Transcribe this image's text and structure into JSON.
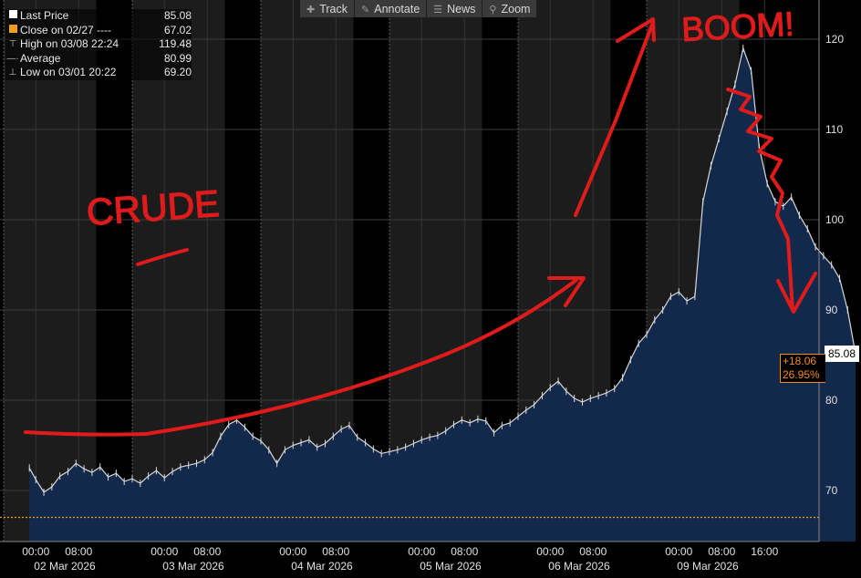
{
  "legend": {
    "last_price_label": "Last Price",
    "last_price_value": "85.08",
    "close_label": "Close on 02/27 ----",
    "close_value": "67.02",
    "high_label": "High on 03/08 22:24",
    "high_value": "119.48",
    "average_label": "Average",
    "average_value": "80.99",
    "low_label": "Low on 03/01 20:22",
    "low_value": "69.20"
  },
  "toolbar": {
    "track": "Track",
    "annotate": "Annotate",
    "news": "News",
    "zoom": "Zoom"
  },
  "last_price_badge": "85.08",
  "change_abs": "+18.06",
  "change_pct": "26.95%",
  "annotations": {
    "crude": "CRUDE",
    "boom": "BOOM!"
  },
  "colors": {
    "area_fill": "#13294b",
    "area_line": "#d8d8d8",
    "close_line": "#f39c1e",
    "annotation": "#e01b1b",
    "session_shade": "#1c1c1c",
    "badge_bg": "#ffffff"
  },
  "chart_data": {
    "type": "area",
    "title": "",
    "xlabel": "",
    "ylabel": "",
    "ylim": [
      67,
      123
    ],
    "yticks": [
      70,
      80,
      90,
      100,
      110,
      120
    ],
    "x_ticks": [
      {
        "day": 0,
        "hour": 0,
        "label": "00:00"
      },
      {
        "day": 0,
        "hour": 8,
        "label": "08:00"
      },
      {
        "day": 1,
        "hour": 0,
        "label": "00:00"
      },
      {
        "day": 1,
        "hour": 8,
        "label": "08:00"
      },
      {
        "day": 2,
        "hour": 0,
        "label": "00:00"
      },
      {
        "day": 2,
        "hour": 8,
        "label": "08:00"
      },
      {
        "day": 3,
        "hour": 0,
        "label": "00:00"
      },
      {
        "day": 3,
        "hour": 8,
        "label": "08:00"
      },
      {
        "day": 4,
        "hour": 0,
        "label": "00:00"
      },
      {
        "day": 4,
        "hour": 8,
        "label": "08:00"
      },
      {
        "day": 5,
        "hour": 0,
        "label": "00:00"
      },
      {
        "day": 5,
        "hour": 8,
        "label": "08:00"
      },
      {
        "day": 5,
        "hour": 16,
        "label": "16:00"
      }
    ],
    "day_labels": [
      "02 Mar 2026",
      "03 Mar 2026",
      "04 Mar 2026",
      "05 Mar 2026",
      "06 Mar 2026",
      "09 Mar 2026"
    ],
    "reference_line": {
      "name": "Close on 02/27",
      "value": 67.02
    },
    "grid": true,
    "legend_position": "top-left",
    "series": [
      {
        "name": "Last Price",
        "x": [
          -1.2,
          0,
          1.5,
          3,
          4.5,
          6,
          7.5,
          9,
          10.5,
          12,
          13.5,
          15,
          16.5,
          18,
          19.5,
          21,
          22.5,
          24,
          25.5,
          27,
          28.5,
          30,
          31.5,
          33,
          34.5,
          36,
          37.5,
          39,
          40.5,
          42,
          43.5,
          45,
          46.5,
          48,
          49.5,
          51,
          52.5,
          54,
          55.5,
          57,
          58.5,
          60,
          61.5,
          63,
          64.5,
          66,
          67.5,
          69,
          70.5,
          72,
          73.5,
          75,
          76.5,
          78,
          79.5,
          81,
          82.5,
          84,
          85.5,
          87,
          88.5,
          90,
          91.5,
          93,
          94.5,
          96,
          97.5,
          99,
          100.5,
          102,
          103.5,
          105,
          106.5,
          108,
          109.5,
          111,
          112.5,
          114,
          115.5,
          117,
          118.5,
          120,
          121.5,
          123,
          124.5,
          126,
          127.5,
          129,
          130.5,
          132,
          133.5,
          135,
          136.5,
          138,
          139.5,
          141,
          142.5,
          144,
          145.5,
          147,
          148.5,
          150,
          151.5,
          153
        ],
        "y": [
          72.5,
          71.2,
          69.8,
          70.4,
          71.6,
          72.1,
          73.0,
          72.4,
          72.0,
          72.6,
          71.5,
          71.9,
          71.0,
          71.3,
          70.8,
          71.6,
          72.2,
          71.4,
          72.1,
          72.6,
          72.8,
          73.0,
          73.4,
          74.2,
          76.0,
          77.3,
          77.8,
          77.0,
          76.0,
          75.5,
          74.5,
          73.0,
          74.5,
          75.0,
          75.3,
          75.6,
          74.8,
          75.2,
          76.0,
          76.8,
          77.2,
          75.9,
          75.3,
          74.6,
          74.1,
          74.3,
          74.5,
          74.8,
          75.2,
          75.6,
          75.9,
          76.1,
          76.6,
          77.3,
          77.8,
          77.5,
          77.9,
          77.7,
          76.4,
          77.2,
          77.5,
          78.2,
          78.9,
          79.5,
          80.5,
          81.4,
          82.1,
          81.0,
          80.2,
          79.8,
          80.2,
          80.5,
          80.8,
          81.3,
          82.5,
          84.5,
          86.3,
          87.3,
          88.9,
          90.0,
          91.5,
          92.0,
          91.0,
          91.5,
          102.0,
          106.0,
          109.0,
          112.0,
          115.0,
          119.0,
          116.5,
          108.0,
          104.0,
          102.0,
          101.5,
          102.5,
          100.5,
          99.0,
          97.0,
          96.0,
          95.0,
          93.5,
          90.0,
          85.08
        ]
      }
    ]
  }
}
